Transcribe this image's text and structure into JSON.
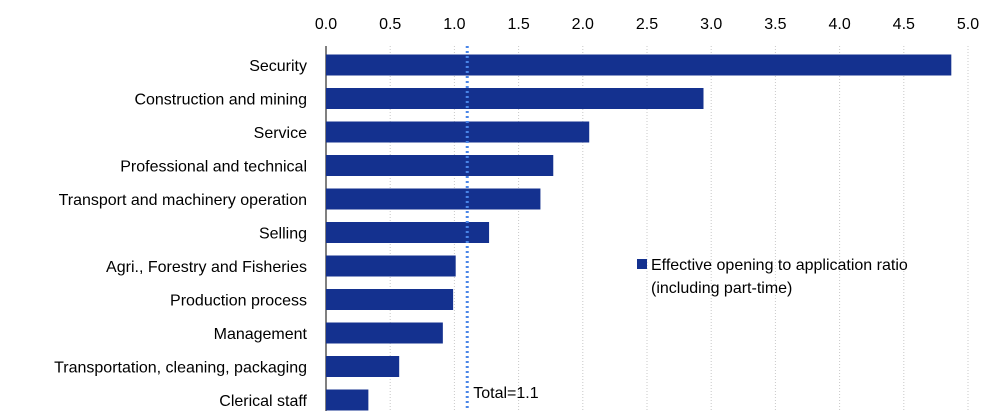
{
  "chart_data": {
    "type": "bar",
    "orientation": "horizontal",
    "categories": [
      "Security",
      "Construction and mining",
      "Service",
      "Professional and technical",
      "Transport and machinery operation",
      "Selling",
      "Agri., Forestry and Fisheries",
      "Production process",
      "Management",
      "Transportation, cleaning, packaging",
      "Clerical staff"
    ],
    "series": [
      {
        "name": "Effective opening to application ratio (including part-time)",
        "legend_lines": [
          "Effective opening to application ratio",
          "(including part-time)"
        ],
        "values": [
          4.87,
          2.94,
          2.05,
          1.77,
          1.67,
          1.27,
          1.01,
          0.99,
          0.91,
          0.57,
          0.33
        ],
        "color": "#14318f"
      }
    ],
    "xlim": [
      0,
      5
    ],
    "xticks": [
      "0.0",
      "0.5",
      "1.0",
      "1.5",
      "2.0",
      "2.5",
      "3.0",
      "3.5",
      "4.0",
      "4.5",
      "5.0"
    ],
    "x_axis_position": "top",
    "grid": true,
    "legend_position": "right-middle",
    "reference_line": {
      "value": 1.1,
      "label": "Total=1.1",
      "style": "dotted",
      "color": "#4a86e8"
    }
  }
}
